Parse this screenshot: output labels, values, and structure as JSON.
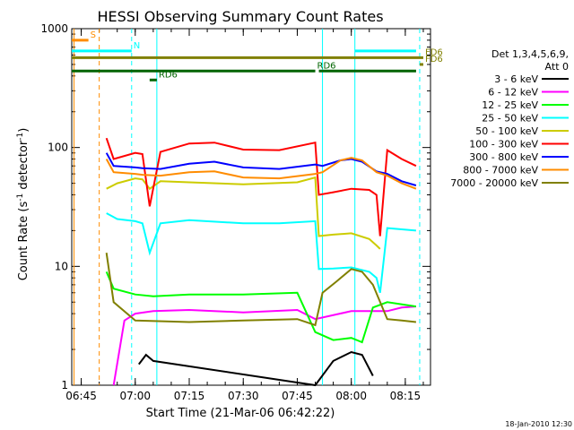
{
  "chart_data": {
    "type": "line",
    "title": "HESSI Observing Summary Count Rates",
    "xlabel": "Start Time (21-Mar-06 06:42:22)",
    "ylabel": "Count Rate (s⁻¹ detector⁻¹)",
    "ylabel_main": "Count Rate (s",
    "ylabel_sup1": "-1",
    "ylabel_mid": " detector",
    "ylabel_sup2": "-1",
    "ylabel_end": ")",
    "footer": "18-Jan-2010 12:30",
    "y_scale": "log",
    "xlim": [
      "06:42:22",
      "08:22:00"
    ],
    "ylim": [
      1,
      1000
    ],
    "x_ticks": [
      "06:45",
      "07:00",
      "07:15",
      "07:30",
      "07:45",
      "08:00",
      "08:15"
    ],
    "y_ticks": [
      "1",
      "10",
      "100",
      "1000"
    ],
    "legend_placement": "right",
    "legend_header": [
      "Det 1,3,4,5,6,9,",
      "Att 0"
    ],
    "series": [
      {
        "name": "3 - 6 keV",
        "color": "#000000",
        "points": [
          [
            "07:01",
            1.5
          ],
          [
            "07:03",
            1.8
          ],
          [
            "07:05",
            1.6
          ],
          [
            "07:50",
            1.0
          ],
          [
            "07:55",
            1.6
          ],
          [
            "08:00",
            1.9
          ],
          [
            "08:03",
            1.8
          ],
          [
            "08:06",
            1.2
          ]
        ]
      },
      {
        "name": "6 - 12 keV",
        "color": "#ff00ff",
        "points": [
          [
            "06:54",
            1.0
          ],
          [
            "06:57",
            3.5
          ],
          [
            "07:00",
            4.0
          ],
          [
            "07:05",
            4.2
          ],
          [
            "07:15",
            4.3
          ],
          [
            "07:30",
            4.1
          ],
          [
            "07:45",
            4.3
          ],
          [
            "07:50",
            3.6
          ],
          [
            "08:00",
            4.2
          ],
          [
            "08:10",
            4.2
          ],
          [
            "08:14",
            4.5
          ],
          [
            "08:18",
            4.6
          ]
        ]
      },
      {
        "name": "12 - 25 keV",
        "color": "#00ff00",
        "points": [
          [
            "06:52",
            9.0
          ],
          [
            "06:54",
            6.5
          ],
          [
            "07:00",
            5.8
          ],
          [
            "07:05",
            5.6
          ],
          [
            "07:15",
            5.8
          ],
          [
            "07:30",
            5.8
          ],
          [
            "07:45",
            6.0
          ],
          [
            "07:50",
            2.8
          ],
          [
            "07:55",
            2.4
          ],
          [
            "08:00",
            2.5
          ],
          [
            "08:03",
            2.3
          ],
          [
            "08:06",
            4.5
          ],
          [
            "08:10",
            5.0
          ],
          [
            "08:18",
            4.6
          ]
        ]
      },
      {
        "name": "25 - 50 keV",
        "color": "#00ffff",
        "points": [
          [
            "06:52",
            28.0
          ],
          [
            "06:55",
            25.0
          ],
          [
            "07:00",
            24.0
          ],
          [
            "07:02",
            23.0
          ],
          [
            "07:04",
            13.0
          ],
          [
            "07:07",
            23.0
          ],
          [
            "07:15",
            24.5
          ],
          [
            "07:30",
            23.0
          ],
          [
            "07:40",
            23.0
          ],
          [
            "07:50",
            24.0
          ],
          [
            "07:51",
            9.5
          ],
          [
            "07:55",
            9.6
          ],
          [
            "08:00",
            9.8
          ],
          [
            "08:05",
            9.0
          ],
          [
            "08:07",
            8.0
          ],
          [
            "08:08",
            6.0
          ],
          [
            "08:10",
            21.0
          ],
          [
            "08:18",
            20.0
          ]
        ]
      },
      {
        "name": "50 - 100 keV",
        "color": "#cccc00",
        "points": [
          [
            "06:52",
            45.0
          ],
          [
            "06:55",
            50.0
          ],
          [
            "07:00",
            55.0
          ],
          [
            "07:02",
            54.0
          ],
          [
            "07:04",
            45.0
          ],
          [
            "07:07",
            52.0
          ],
          [
            "07:15",
            51.0
          ],
          [
            "07:30",
            49.0
          ],
          [
            "07:45",
            51.0
          ],
          [
            "07:50",
            56.0
          ],
          [
            "07:51",
            18.0
          ],
          [
            "07:55",
            18.5
          ],
          [
            "08:00",
            19.0
          ],
          [
            "08:05",
            17.0
          ],
          [
            "08:07",
            15.0
          ],
          [
            "08:08",
            14.0
          ]
        ]
      },
      {
        "name": "100 - 300 keV",
        "color": "#ff0000",
        "points": [
          [
            "06:52",
            120.0
          ],
          [
            "06:54",
            80.0
          ],
          [
            "07:00",
            90.0
          ],
          [
            "07:02",
            88.0
          ],
          [
            "07:04",
            32.0
          ],
          [
            "07:07",
            92.0
          ],
          [
            "07:15",
            108.0
          ],
          [
            "07:22",
            110.0
          ],
          [
            "07:30",
            96.0
          ],
          [
            "07:40",
            95.0
          ],
          [
            "07:50",
            110.0
          ],
          [
            "07:51",
            40.0
          ],
          [
            "07:55",
            42.0
          ],
          [
            "08:00",
            45.0
          ],
          [
            "08:05",
            44.0
          ],
          [
            "08:07",
            40.0
          ],
          [
            "08:08",
            18.0
          ],
          [
            "08:10",
            95.0
          ],
          [
            "08:14",
            80.0
          ],
          [
            "08:18",
            70.0
          ]
        ]
      },
      {
        "name": "300 - 800 keV",
        "color": "#0000ff",
        "points": [
          [
            "06:52",
            90.0
          ],
          [
            "06:54",
            70.0
          ],
          [
            "07:00",
            68.0
          ],
          [
            "07:02",
            67.0
          ],
          [
            "07:07",
            66.0
          ],
          [
            "07:15",
            73.0
          ],
          [
            "07:22",
            76.0
          ],
          [
            "07:30",
            68.0
          ],
          [
            "07:40",
            66.0
          ],
          [
            "07:50",
            72.0
          ],
          [
            "07:52",
            70.0
          ],
          [
            "07:57",
            78.0
          ],
          [
            "08:00",
            80.0
          ],
          [
            "08:03",
            76.0
          ],
          [
            "08:07",
            63.0
          ],
          [
            "08:10",
            60.0
          ],
          [
            "08:14",
            52.0
          ],
          [
            "08:18",
            48.0
          ]
        ]
      },
      {
        "name": "800 - 7000 keV",
        "color": "#ff8c00",
        "points": [
          [
            "06:52",
            80.0
          ],
          [
            "06:54",
            62.0
          ],
          [
            "07:00",
            60.0
          ],
          [
            "07:02",
            59.0
          ],
          [
            "07:07",
            58.0
          ],
          [
            "07:15",
            62.0
          ],
          [
            "07:22",
            63.0
          ],
          [
            "07:30",
            56.0
          ],
          [
            "07:40",
            55.0
          ],
          [
            "07:50",
            60.0
          ],
          [
            "07:52",
            62.0
          ],
          [
            "07:57",
            78.0
          ],
          [
            "08:00",
            82.0
          ],
          [
            "08:03",
            78.0
          ],
          [
            "08:07",
            62.0
          ],
          [
            "08:10",
            58.0
          ],
          [
            "08:14",
            50.0
          ],
          [
            "08:18",
            45.0
          ]
        ]
      },
      {
        "name": "7000 - 20000 keV",
        "color": "#808000",
        "points": [
          [
            "06:52",
            13.0
          ],
          [
            "06:54",
            5.0
          ],
          [
            "07:00",
            3.5
          ],
          [
            "07:15",
            3.4
          ],
          [
            "07:30",
            3.5
          ],
          [
            "07:45",
            3.6
          ],
          [
            "07:50",
            3.2
          ],
          [
            "07:52",
            6.0
          ],
          [
            "07:56",
            7.5
          ],
          [
            "08:00",
            9.5
          ],
          [
            "08:03",
            9.0
          ],
          [
            "08:06",
            7.0
          ],
          [
            "08:10",
            3.6
          ],
          [
            "08:14",
            3.5
          ],
          [
            "08:18",
            3.4
          ]
        ]
      }
    ],
    "flag_lines": [
      {
        "label": "S",
        "color": "#ff8c00",
        "y": 800,
        "x0": "06:42:22",
        "x1": "06:47"
      },
      {
        "label": "N",
        "color": "#00ffff",
        "y": 650,
        "x0": "06:42:22",
        "x1": "06:59",
        "x0b": "08:01",
        "x1b": "08:18"
      },
      {
        "label": "FD6",
        "color": "#808000",
        "y": 570,
        "x0": "06:42:22",
        "x1": "08:20"
      },
      {
        "label": "FD6",
        "color": "#808000",
        "y": 500,
        "x0": "08:19",
        "x1": "08:20"
      },
      {
        "label": "RD6",
        "color": "#006400",
        "y": 440,
        "x0": "06:42:22",
        "x1": "07:50",
        "x0b": "07:51",
        "x1b": "08:18"
      },
      {
        "label": "RD6",
        "color": "#006400",
        "y": 370,
        "x0": "07:04",
        "x1": "07:06"
      }
    ],
    "vertical_lines": [
      {
        "x": "06:43",
        "color": "#ff8c00",
        "style": "solid"
      },
      {
        "x": "06:50",
        "color": "#ff8c00",
        "style": "dashed"
      },
      {
        "x": "06:59",
        "color": "#00ffff",
        "style": "dashed"
      },
      {
        "x": "07:06",
        "color": "#00ffff",
        "style": "solid"
      },
      {
        "x": "07:52",
        "color": "#00ffff",
        "style": "solid"
      },
      {
        "x": "08:01",
        "color": "#00ffff",
        "style": "solid"
      },
      {
        "x": "08:19",
        "color": "#00ffff",
        "style": "dashed"
      }
    ]
  }
}
